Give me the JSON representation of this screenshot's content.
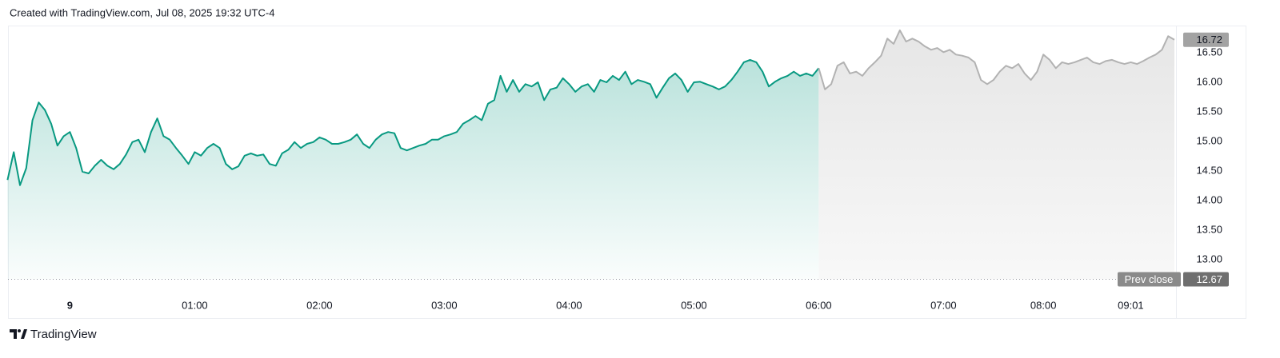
{
  "header": "Created with TradingView.com, Jul 08, 2025 19:32 UTC-4",
  "footer": "TradingView",
  "chart_data": {
    "type": "area",
    "categories": [
      null,
      null,
      null,
      null,
      null,
      null,
      null,
      null,
      null,
      null,
      "9",
      null,
      null,
      null,
      null,
      null,
      null,
      null,
      null,
      null,
      null,
      null,
      null,
      null,
      null,
      null,
      null,
      null,
      null,
      null,
      "01:00",
      null,
      null,
      null,
      null,
      null,
      null,
      null,
      null,
      null,
      null,
      null,
      null,
      null,
      null,
      null,
      null,
      null,
      null,
      null,
      "02:00",
      null,
      null,
      null,
      null,
      null,
      null,
      null,
      null,
      null,
      null,
      null,
      null,
      null,
      null,
      null,
      null,
      null,
      null,
      null,
      "03:00",
      null,
      null,
      null,
      null,
      null,
      null,
      null,
      null,
      null,
      null,
      null,
      null,
      null,
      null,
      null,
      null,
      null,
      null,
      null,
      "04:00",
      null,
      null,
      null,
      null,
      null,
      null,
      null,
      null,
      null,
      null,
      null,
      null,
      null,
      null,
      null,
      null,
      null,
      null,
      null,
      "05:00",
      null,
      null,
      null,
      null,
      null,
      null,
      null,
      null,
      null,
      null,
      null,
      null,
      null,
      null,
      null,
      null,
      null,
      null,
      null,
      "06:00",
      null,
      null,
      null,
      null,
      null,
      null,
      null,
      null,
      null,
      null,
      null,
      null,
      null,
      null,
      null,
      null,
      null,
      null,
      null,
      "07:00",
      null,
      null,
      null,
      null,
      null,
      null,
      null,
      null,
      null,
      null,
      null,
      null,
      null,
      null,
      null,
      "08:00",
      null,
      null,
      null,
      null,
      null,
      null,
      null,
      null,
      null,
      null,
      null,
      null,
      null,
      "09:01",
      null,
      null,
      null,
      null,
      null,
      null,
      null
    ],
    "series": [
      {
        "color": "#089981",
        "values": [
          14.35,
          14.82,
          14.26,
          14.55,
          15.36,
          15.66,
          15.53,
          15.3,
          14.93,
          15.09,
          15.16,
          14.89,
          14.49,
          14.46,
          14.59,
          14.69,
          14.59,
          14.53,
          14.62,
          14.78,
          14.99,
          15.03,
          14.82,
          15.16,
          15.39,
          15.09,
          15.03,
          14.89,
          14.76,
          14.62,
          14.82,
          14.76,
          14.89,
          14.96,
          14.89,
          14.62,
          14.53,
          14.58,
          14.76,
          14.8,
          14.76,
          14.78,
          14.62,
          14.59,
          14.8,
          14.86,
          14.99,
          14.89,
          14.96,
          14.99,
          15.07,
          15.03,
          14.96,
          14.96,
          14.99,
          15.03,
          15.12,
          14.96,
          14.89,
          15.03,
          15.12,
          15.16,
          15.14,
          14.89,
          14.85,
          14.89,
          14.93,
          14.96,
          15.03,
          15.03,
          15.09,
          15.12,
          15.16,
          15.3,
          15.36,
          15.43,
          15.36,
          15.64,
          15.7,
          16.11,
          15.84,
          16.04,
          15.84,
          15.97,
          15.93,
          16.0,
          15.7,
          15.88,
          15.91,
          16.07,
          15.97,
          15.84,
          15.93,
          15.97,
          15.84,
          16.04,
          16.0,
          16.11,
          16.04,
          16.18,
          15.97,
          16.04,
          16.01,
          15.97,
          15.74,
          15.91,
          16.07,
          16.15,
          16.04,
          15.84,
          16.0,
          16.01,
          15.97,
          15.93,
          15.88,
          15.93,
          16.04,
          16.18,
          16.34,
          16.38,
          16.34,
          16.18,
          15.93,
          16.01,
          16.07,
          16.11,
          16.18,
          16.11,
          16.15,
          16.11,
          16.24,
          null,
          null,
          null,
          null,
          null,
          null,
          null,
          null,
          null,
          null,
          null,
          null,
          null,
          null,
          null,
          null,
          null,
          null,
          null,
          null,
          null,
          null,
          null,
          null,
          null,
          null,
          null,
          null,
          null,
          null,
          null,
          null,
          null,
          null,
          null,
          null,
          null,
          null,
          null,
          null,
          null,
          null,
          null,
          null,
          null,
          null,
          null,
          null,
          null,
          null,
          null,
          null,
          null,
          null,
          null,
          null,
          null
        ]
      },
      {
        "color": "#b2b2b2",
        "values": [
          null,
          null,
          null,
          null,
          null,
          null,
          null,
          null,
          null,
          null,
          null,
          null,
          null,
          null,
          null,
          null,
          null,
          null,
          null,
          null,
          null,
          null,
          null,
          null,
          null,
          null,
          null,
          null,
          null,
          null,
          null,
          null,
          null,
          null,
          null,
          null,
          null,
          null,
          null,
          null,
          null,
          null,
          null,
          null,
          null,
          null,
          null,
          null,
          null,
          null,
          null,
          null,
          null,
          null,
          null,
          null,
          null,
          null,
          null,
          null,
          null,
          null,
          null,
          null,
          null,
          null,
          null,
          null,
          null,
          null,
          null,
          null,
          null,
          null,
          null,
          null,
          null,
          null,
          null,
          null,
          null,
          null,
          null,
          null,
          null,
          null,
          null,
          null,
          null,
          null,
          null,
          null,
          null,
          null,
          null,
          null,
          null,
          null,
          null,
          null,
          null,
          null,
          null,
          null,
          null,
          null,
          null,
          null,
          null,
          null,
          null,
          null,
          null,
          null,
          null,
          null,
          null,
          null,
          null,
          null,
          null,
          null,
          null,
          null,
          null,
          null,
          null,
          null,
          null,
          null,
          16.24,
          15.88,
          15.97,
          16.28,
          16.34,
          16.15,
          16.18,
          16.11,
          16.24,
          16.34,
          16.45,
          16.74,
          16.65,
          16.88,
          16.69,
          16.74,
          16.69,
          16.61,
          16.55,
          16.58,
          16.51,
          16.55,
          16.47,
          16.45,
          16.42,
          16.34,
          16.04,
          15.97,
          16.04,
          16.18,
          16.28,
          16.24,
          16.31,
          16.15,
          16.04,
          16.18,
          16.47,
          16.38,
          16.24,
          16.34,
          16.31,
          16.34,
          16.38,
          16.42,
          16.34,
          16.31,
          16.36,
          16.38,
          16.34,
          16.31,
          16.34,
          16.31,
          16.36,
          16.42,
          16.47,
          16.55,
          16.78,
          16.72
        ]
      }
    ],
    "ylim": [
      12.42,
      16.96
    ],
    "yticks": [
      {
        "value": 13,
        "label": "13.00"
      },
      {
        "value": 13.5,
        "label": "13.50"
      },
      {
        "value": 14,
        "label": "14.00"
      },
      {
        "value": 14.5,
        "label": "14.50"
      },
      {
        "value": 15,
        "label": "15.00"
      },
      {
        "value": 15.5,
        "label": "15.50"
      },
      {
        "value": 16,
        "label": "16.00"
      },
      {
        "value": 16.5,
        "label": "16.50"
      }
    ],
    "grid": false,
    "last_price": 16.72,
    "prev_close": {
      "label": "Prev close",
      "value": 12.67
    }
  }
}
